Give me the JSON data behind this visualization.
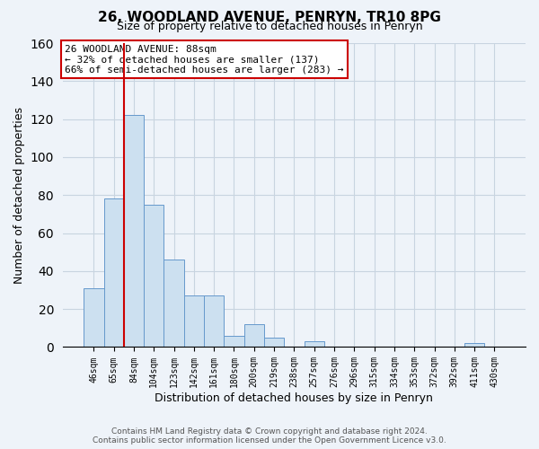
{
  "title": "26, WOODLAND AVENUE, PENRYN, TR10 8PG",
  "subtitle": "Size of property relative to detached houses in Penryn",
  "xlabel": "Distribution of detached houses by size in Penryn",
  "ylabel": "Number of detached properties",
  "bar_labels": [
    "46sqm",
    "65sqm",
    "84sqm",
    "104sqm",
    "123sqm",
    "142sqm",
    "161sqm",
    "180sqm",
    "200sqm",
    "219sqm",
    "238sqm",
    "257sqm",
    "276sqm",
    "296sqm",
    "315sqm",
    "334sqm",
    "353sqm",
    "372sqm",
    "392sqm",
    "411sqm",
    "430sqm"
  ],
  "bar_heights": [
    31,
    78,
    122,
    75,
    46,
    27,
    27,
    6,
    12,
    5,
    0,
    3,
    0,
    0,
    0,
    0,
    0,
    0,
    0,
    2,
    0
  ],
  "bar_color": "#cce0f0",
  "bar_edge_color": "#6699cc",
  "vline_color": "#cc0000",
  "ylim": [
    0,
    160
  ],
  "yticks": [
    0,
    20,
    40,
    60,
    80,
    100,
    120,
    140,
    160
  ],
  "annotation_title": "26 WOODLAND AVENUE: 88sqm",
  "annotation_line1": "← 32% of detached houses are smaller (137)",
  "annotation_line2": "66% of semi-detached houses are larger (283) →",
  "footer1": "Contains HM Land Registry data © Crown copyright and database right 2024.",
  "footer2": "Contains public sector information licensed under the Open Government Licence v3.0.",
  "bg_color": "#eef3f9",
  "grid_color": "#c8d4e0"
}
